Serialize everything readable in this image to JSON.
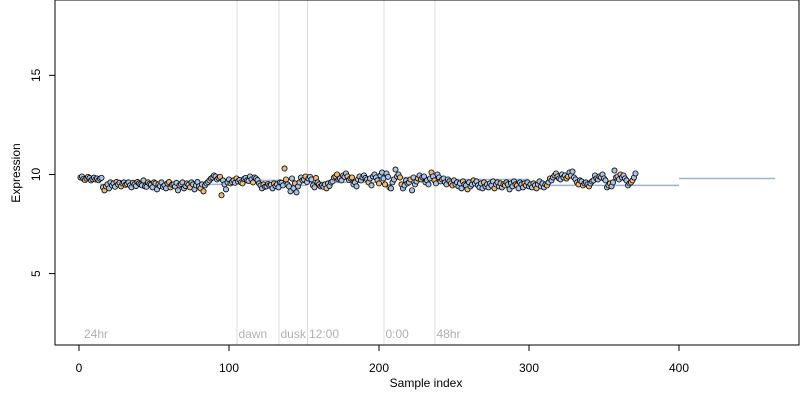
{
  "chart_data": {
    "type": "scatter",
    "title": "",
    "xlabel": "Sample index",
    "ylabel": "Expression",
    "xlim": [
      -16,
      480
    ],
    "ylim": [
      1.4,
      18.8
    ],
    "xticks": [
      0,
      100,
      200,
      300,
      400
    ],
    "yticks": [
      5,
      10,
      15
    ],
    "grid": false,
    "colors": {
      "point_fill_a": "#a9c4e6",
      "point_fill_b": "#f5b871",
      "point_stroke": "#000000",
      "trend": "#9bb2d6",
      "divider": "#dddddd",
      "region_label": "#b0b0b0"
    },
    "regions": [
      {
        "label": "24hr",
        "start": 2
      },
      {
        "label": "dawn",
        "start": 105
      },
      {
        "label": "dusk",
        "start": 133
      },
      {
        "label": "12:00",
        "start": 152
      },
      {
        "label": "0:00",
        "start": 203
      },
      {
        "label": "48hr",
        "start": 237
      }
    ],
    "trend": [
      {
        "x": [
          2,
          14
        ],
        "y": 9.75
      },
      {
        "x": [
          14,
          102
        ],
        "y": 9.5
      },
      {
        "x": [
          102,
          133
        ],
        "y": 9.7
      },
      {
        "x": [
          133,
          152
        ],
        "y": 9.45
      },
      {
        "x": [
          152,
          200
        ],
        "y": 9.6
      },
      {
        "x": [
          200,
          237
        ],
        "y": 9.85
      },
      {
        "x": [
          237,
          300
        ],
        "y": 9.75
      },
      {
        "x": [
          300,
          400
        ],
        "y": 9.45
      },
      {
        "x": [
          400,
          464
        ],
        "y": 9.8
      }
    ],
    "series": [
      {
        "name": "",
        "x_start": 1,
        "x_step": 1,
        "y": [
          9.85,
          9.9,
          9.78,
          9.72,
          9.8,
          9.88,
          9.82,
          9.7,
          9.76,
          9.84,
          9.75,
          9.8,
          9.71,
          9.79,
          9.83,
          9.35,
          9.2,
          9.4,
          9.5,
          9.3,
          9.6,
          9.45,
          9.55,
          9.38,
          9.62,
          9.5,
          9.58,
          9.4,
          9.55,
          9.6,
          9.48,
          9.52,
          9.6,
          9.45,
          9.35,
          9.58,
          9.5,
          9.42,
          9.62,
          9.55,
          9.5,
          9.45,
          9.7,
          9.4,
          9.38,
          9.6,
          9.52,
          9.48,
          9.35,
          9.6,
          9.55,
          9.25,
          9.5,
          9.42,
          9.6,
          9.38,
          9.45,
          9.3,
          9.55,
          9.62,
          9.35,
          9.48,
          9.5,
          9.4,
          9.58,
          9.2,
          9.45,
          9.52,
          9.6,
          9.3,
          9.42,
          9.55,
          9.48,
          9.35,
          9.6,
          9.5,
          9.25,
          9.45,
          9.62,
          9.4,
          9.3,
          9.5,
          9.15,
          9.45,
          9.55,
          9.62,
          9.7,
          9.8,
          9.85,
          9.95,
          9.9,
          9.75,
          9.82,
          9.88,
          8.95,
          9.7,
          9.5,
          9.25,
          9.6,
          9.75,
          9.55,
          9.62,
          9.7,
          9.58,
          9.8,
          9.65,
          9.72,
          9.6,
          9.55,
          9.78,
          9.82,
          9.7,
          9.68,
          9.9,
          9.75,
          9.6,
          9.85,
          9.8,
          9.72,
          9.55,
          9.45,
          9.3,
          9.5,
          9.38,
          9.4,
          9.52,
          9.45,
          9.48,
          9.3,
          9.55,
          9.42,
          9.5,
          9.35,
          9.6,
          9.58,
          9.45,
          10.3,
          9.75,
          9.5,
          9.4,
          9.15,
          9.8,
          9.3,
          9.55,
          9.1,
          9.4,
          9.6,
          9.85,
          9.7,
          9.75,
          9.9,
          9.62,
          9.8,
          9.88,
          9.75,
          9.45,
          9.35,
          9.82,
          9.6,
          9.5,
          9.4,
          9.45,
          9.38,
          9.5,
          9.3,
          9.55,
          9.42,
          9.6,
          9.65,
          9.85,
          9.9,
          10.0,
          9.75,
          9.8,
          9.7,
          9.95,
          9.88,
          10.05,
          9.9,
          9.72,
          9.8,
          9.85,
          9.5,
          9.6,
          9.4,
          9.75,
          9.9,
          9.7,
          9.85,
          9.95,
          9.82,
          9.75,
          9.6,
          9.8,
          9.45,
          9.9,
          10.0,
          9.85,
          9.7,
          9.55,
          9.95,
          10.1,
          9.8,
          9.5,
          10.05,
          9.88,
          9.35,
          9.3,
          9.6,
          9.75,
          10.25,
          9.9,
          10.0,
          9.85,
          9.5,
          9.3,
          9.45,
          9.7,
          9.55,
          9.6,
          9.75,
          9.2,
          9.85,
          9.5,
          9.65,
          9.8,
          9.95,
          9.75,
          9.85,
          9.9,
          9.6,
          9.7,
          9.5,
          9.8,
          10.1,
          9.9,
          9.7,
          9.55,
          10.0,
          9.85,
          9.65,
          9.75,
          9.8,
          9.6,
          9.5,
          9.75,
          9.65,
          9.55,
          9.45,
          9.7,
          9.5,
          9.6,
          9.4,
          9.55,
          9.3,
          9.65,
          9.5,
          9.45,
          9.25,
          9.6,
          9.4,
          9.5,
          9.7,
          9.55,
          9.65,
          9.45,
          9.35,
          9.55,
          9.3,
          9.6,
          9.4,
          9.5,
          9.35,
          9.55,
          9.45,
          9.65,
          9.3,
          9.5,
          9.6,
          9.4,
          9.55,
          9.35,
          9.5,
          9.45,
          9.6,
          9.5,
          9.25,
          9.55,
          9.4,
          9.65,
          9.5,
          9.45,
          9.3,
          9.6,
          9.5,
          9.35,
          9.55,
          9.45,
          9.6,
          9.4,
          9.5,
          9.35,
          9.55,
          9.45,
          9.3,
          9.5,
          9.65,
          9.4,
          9.55,
          9.35,
          9.5,
          9.45,
          9.6,
          9.8,
          9.7,
          9.85,
          9.95,
          10.05,
          9.9,
          9.8,
          9.75,
          10.0,
          9.85,
          9.95,
          9.8,
          9.9,
          10.1,
          9.95,
          10.15,
          9.85,
          9.75,
          9.6,
          9.5,
          9.7,
          9.65,
          9.45,
          9.55,
          9.6,
          9.5,
          9.4,
          9.55,
          9.65,
          9.7,
          9.95,
          9.8,
          9.75,
          9.9,
          9.85,
          10.0,
          9.8,
          9.7,
          9.35,
          9.45,
          9.55,
          9.4,
          9.6,
          10.2,
          9.85,
          9.9,
          9.75,
          10.0,
          9.85,
          9.95,
          9.8,
          9.7,
          9.45,
          9.55,
          9.6,
          9.7,
          9.85,
          10.05
        ]
      }
    ]
  }
}
